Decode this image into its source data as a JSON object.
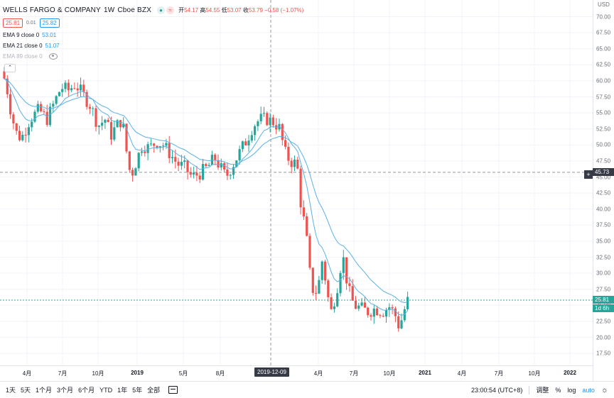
{
  "symbol": {
    "name": "WELLS FARGO & COMPANY",
    "interval": "1W",
    "exchange": "Cboe BZX",
    "indicator_icons": [
      "eye-dot-icon",
      "approx-icon"
    ]
  },
  "ohlc": {
    "open_label": "开",
    "open": "54.17",
    "high_label": "高",
    "high": "54.55",
    "low_label": "低",
    "low": "53.07",
    "close_label": "收",
    "close": "53.79",
    "change": "−0.58 (−1.07%)"
  },
  "quote": {
    "bid": "25.81",
    "spread": "0.01",
    "ask": "25.82"
  },
  "indicators": [
    {
      "name": "EMA 9 close 0",
      "value": "53.01",
      "color": "#2196f3"
    },
    {
      "name": "EMA 21 close 0",
      "value": "51.07",
      "color": "#2196f3"
    },
    {
      "name": "EMA 89 close 0",
      "value": "",
      "color": "#b2b5be",
      "hidden": true
    }
  ],
  "price_axis": {
    "ticks": [
      "70.00",
      "67.50",
      "65.00",
      "62.50",
      "60.00",
      "57.50",
      "55.00",
      "52.50",
      "50.00",
      "47.50",
      "45.00",
      "42.50",
      "40.00",
      "37.50",
      "35.00",
      "32.50",
      "30.00",
      "27.50",
      "25.00",
      "22.50",
      "20.00",
      "17.50"
    ],
    "currency": "USD",
    "crosshair_price": "45.73",
    "last_price": "25.81",
    "countdown": "1d 6h"
  },
  "time_axis": {
    "ticks": [
      {
        "label": "4月",
        "bold": false
      },
      {
        "label": "7月",
        "bold": false
      },
      {
        "label": "10月",
        "bold": false
      },
      {
        "label": "2019",
        "bold": true
      },
      {
        "label": "5月",
        "bold": false
      },
      {
        "label": "8月",
        "bold": false
      },
      {
        "label": "4月",
        "bold": false
      },
      {
        "label": "7月",
        "bold": false
      },
      {
        "label": "10月",
        "bold": false
      },
      {
        "label": "2021",
        "bold": true
      },
      {
        "label": "4月",
        "bold": false
      },
      {
        "label": "7月",
        "bold": false
      },
      {
        "label": "10月",
        "bold": false
      },
      {
        "label": "2022",
        "bold": true
      }
    ],
    "crosshair_date": "2019-12-09"
  },
  "colors": {
    "up": "#26a69a",
    "down": "#ef5350",
    "ema": "#5ab0e6",
    "grid": "#f0f3fa",
    "crosshair": "#9598a1",
    "last_line": "#26a69a"
  },
  "bottom_bar": {
    "ranges": [
      "1天",
      "5天",
      "1个月",
      "3个月",
      "6个月",
      "YTD",
      "1年",
      "5年",
      "全部"
    ],
    "time": "23:00:54 (UTC+8)",
    "adjust": "调整",
    "percent": "%",
    "log": "log",
    "auto": "auto"
  },
  "chart_data": {
    "type": "candlestick",
    "interval": "1W",
    "ylim": [
      17.5,
      70
    ],
    "y_ticks": [
      70,
      67.5,
      65,
      62.5,
      60,
      57.5,
      55,
      52.5,
      50,
      47.5,
      45,
      42.5,
      40,
      37.5,
      35,
      32.5,
      30,
      27.5,
      25,
      22.5,
      20,
      17.5
    ],
    "x_tick_labels": [
      "4月",
      "7月",
      "10月",
      "2019",
      "5月",
      "8月",
      "2019-12-09",
      "4月",
      "7月",
      "10月",
      "2021",
      "4月",
      "7月",
      "10月",
      "2022"
    ],
    "series": [
      {
        "name": "EMA 9 close 0",
        "last": 53.01
      },
      {
        "name": "EMA 21 close 0",
        "last": 51.07
      }
    ],
    "ohlc_hover": {
      "open": 54.17,
      "high": 54.55,
      "low": 53.07,
      "close": 53.79
    },
    "last_price": 25.81,
    "price_path": [
      {
        "t": 0,
        "c": 61.5
      },
      {
        "t": 8,
        "c": 60.0
      },
      {
        "t": 14,
        "c": 56.0
      },
      {
        "t": 22,
        "c": 52.0
      },
      {
        "t": 30,
        "c": 51.0
      },
      {
        "t": 42,
        "c": 54.0
      },
      {
        "t": 55,
        "c": 55.5
      },
      {
        "t": 66,
        "c": 54.0
      },
      {
        "t": 76,
        "c": 56.5
      },
      {
        "t": 86,
        "c": 59.0
      },
      {
        "t": 96,
        "c": 58.5
      },
      {
        "t": 106,
        "c": 59.5
      },
      {
        "t": 116,
        "c": 58.0
      },
      {
        "t": 128,
        "c": 56.0
      },
      {
        "t": 138,
        "c": 53.0
      },
      {
        "t": 148,
        "c": 54.0
      },
      {
        "t": 156,
        "c": 51.5
      },
      {
        "t": 164,
        "c": 53.0
      },
      {
        "t": 172,
        "c": 54.0
      },
      {
        "t": 178,
        "c": 49.0
      },
      {
        "t": 184,
        "c": 45.0
      },
      {
        "t": 192,
        "c": 47.5
      },
      {
        "t": 200,
        "c": 50.0
      },
      {
        "t": 210,
        "c": 49.5
      },
      {
        "t": 220,
        "c": 50.5
      },
      {
        "t": 230,
        "c": 50.0
      },
      {
        "t": 240,
        "c": 48.5
      },
      {
        "t": 250,
        "c": 47.0
      },
      {
        "t": 260,
        "c": 46.5
      },
      {
        "t": 270,
        "c": 45.0
      },
      {
        "t": 280,
        "c": 45.5
      },
      {
        "t": 292,
        "c": 46.5
      },
      {
        "t": 302,
        "c": 48.0
      },
      {
        "t": 310,
        "c": 46.5
      },
      {
        "t": 318,
        "c": 45.0
      },
      {
        "t": 328,
        "c": 47.0
      },
      {
        "t": 338,
        "c": 49.0
      },
      {
        "t": 348,
        "c": 51.0
      },
      {
        "t": 356,
        "c": 53.0
      },
      {
        "t": 366,
        "c": 54.0
      },
      {
        "t": 376,
        "c": 54.0
      },
      {
        "t": 386,
        "c": 53.5
      },
      {
        "t": 394,
        "c": 52.5
      },
      {
        "t": 400,
        "c": 49.0
      },
      {
        "t": 408,
        "c": 47.5
      },
      {
        "t": 418,
        "c": 47.0
      },
      {
        "t": 424,
        "c": 40.0
      },
      {
        "t": 430,
        "c": 37.0
      },
      {
        "t": 436,
        "c": 30.0
      },
      {
        "t": 442,
        "c": 26.5
      },
      {
        "t": 448,
        "c": 28.0
      },
      {
        "t": 454,
        "c": 32.5
      },
      {
        "t": 460,
        "c": 27.0
      },
      {
        "t": 466,
        "c": 24.0
      },
      {
        "t": 474,
        "c": 27.5
      },
      {
        "t": 482,
        "c": 33.0
      },
      {
        "t": 490,
        "c": 27.5
      },
      {
        "t": 498,
        "c": 25.0
      },
      {
        "t": 508,
        "c": 24.5
      },
      {
        "t": 518,
        "c": 24.0
      },
      {
        "t": 528,
        "c": 24.5
      },
      {
        "t": 538,
        "c": 24.0
      },
      {
        "t": 548,
        "c": 24.8
      },
      {
        "t": 556,
        "c": 23.5
      },
      {
        "t": 562,
        "c": 21.5
      },
      {
        "t": 568,
        "c": 24.0
      },
      {
        "t": 574,
        "c": 25.8
      }
    ]
  }
}
